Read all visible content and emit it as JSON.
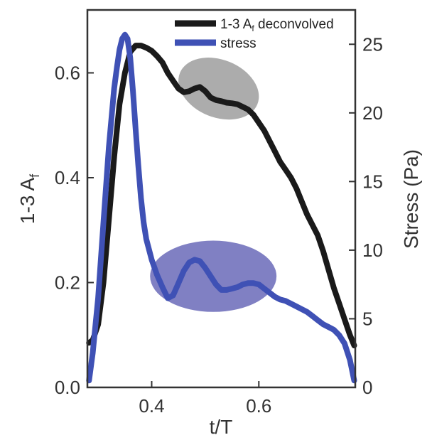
{
  "chart_data": {
    "type": "line",
    "xlabel": "t/T",
    "ylabel_left": "1-3 A",
    "ylabel_left_sub": "f",
    "ylabel_right": "Stress (Pa)",
    "xlim": [
      0.28,
      0.78
    ],
    "ylim_left": [
      0.0,
      0.72
    ],
    "ylim_right": [
      0,
      27.5
    ],
    "x_ticks": [
      0.4,
      0.6
    ],
    "x_tick_labels": [
      "0.4",
      "0.6"
    ],
    "y_left_ticks": [
      0.0,
      0.2,
      0.4,
      0.6
    ],
    "y_left_tick_labels": [
      "0.0",
      "0.2",
      "0.4",
      "0.6"
    ],
    "y_right_ticks": [
      0,
      5,
      10,
      15,
      20,
      25
    ],
    "y_right_tick_labels": [
      "0",
      "5",
      "10",
      "15",
      "20",
      "25"
    ],
    "legend_position": "top-right",
    "series": [
      {
        "name": "1-3 A",
        "name_sub": "f",
        "name_suffix": " deconvolved",
        "color": "#1a1a1a",
        "axis": "left",
        "x": [
          0.283,
          0.29,
          0.3,
          0.31,
          0.32,
          0.33,
          0.34,
          0.35,
          0.36,
          0.37,
          0.38,
          0.39,
          0.4,
          0.41,
          0.42,
          0.43,
          0.44,
          0.45,
          0.46,
          0.47,
          0.48,
          0.49,
          0.5,
          0.51,
          0.52,
          0.53,
          0.54,
          0.55,
          0.56,
          0.57,
          0.58,
          0.59,
          0.6,
          0.61,
          0.62,
          0.63,
          0.64,
          0.65,
          0.66,
          0.67,
          0.68,
          0.69,
          0.7,
          0.71,
          0.72,
          0.73,
          0.74,
          0.75,
          0.76,
          0.77,
          0.778
        ],
        "y": [
          0.085,
          0.09,
          0.12,
          0.2,
          0.32,
          0.44,
          0.54,
          0.6,
          0.64,
          0.652,
          0.652,
          0.648,
          0.642,
          0.632,
          0.62,
          0.6,
          0.585,
          0.57,
          0.563,
          0.565,
          0.57,
          0.573,
          0.565,
          0.553,
          0.548,
          0.546,
          0.543,
          0.542,
          0.54,
          0.535,
          0.53,
          0.52,
          0.505,
          0.49,
          0.47,
          0.45,
          0.43,
          0.415,
          0.4,
          0.38,
          0.355,
          0.33,
          0.31,
          0.29,
          0.26,
          0.225,
          0.19,
          0.16,
          0.13,
          0.1,
          0.08
        ]
      },
      {
        "name": "stress",
        "color": "#3f51b5",
        "axis": "right",
        "x": [
          0.283,
          0.29,
          0.3,
          0.31,
          0.32,
          0.33,
          0.335,
          0.34,
          0.345,
          0.35,
          0.355,
          0.36,
          0.365,
          0.37,
          0.375,
          0.38,
          0.385,
          0.39,
          0.4,
          0.41,
          0.42,
          0.43,
          0.44,
          0.45,
          0.46,
          0.47,
          0.48,
          0.49,
          0.5,
          0.51,
          0.52,
          0.53,
          0.54,
          0.55,
          0.56,
          0.57,
          0.58,
          0.59,
          0.6,
          0.61,
          0.62,
          0.63,
          0.64,
          0.65,
          0.66,
          0.67,
          0.68,
          0.69,
          0.7,
          0.71,
          0.72,
          0.73,
          0.74,
          0.75,
          0.76,
          0.77,
          0.778
        ],
        "y": [
          0.5,
          2.5,
          6.5,
          12,
          17.5,
          21.8,
          23.3,
          24.6,
          25.4,
          25.7,
          25.4,
          24,
          21.6,
          18.8,
          16.2,
          13.8,
          12,
          10.8,
          9.3,
          8.2,
          7.3,
          6.5,
          6.7,
          7.6,
          8.5,
          9.1,
          9.3,
          9.2,
          8.7,
          8.1,
          7.5,
          7.1,
          7.1,
          7.2,
          7.3,
          7.5,
          7.6,
          7.6,
          7.5,
          7.2,
          6.9,
          6.6,
          6.4,
          6.3,
          6.1,
          5.9,
          5.7,
          5.5,
          5.2,
          4.9,
          4.6,
          4.4,
          4.2,
          3.8,
          3.2,
          2.0,
          0.5
        ]
      }
    ],
    "annotations": [
      {
        "shape": "ellipse",
        "color": "#9e9e9e",
        "axis": "left",
        "cx": 0.525,
        "cy": 0.57,
        "rx": 0.078,
        "ry": 0.055,
        "rotation_deg": 22
      },
      {
        "shape": "ellipse",
        "color": "#6a6ab8",
        "axis": "left",
        "cx": 0.515,
        "cy": 0.212,
        "rx": 0.118,
        "ry": 0.068,
        "rotation_deg": 0
      }
    ]
  }
}
